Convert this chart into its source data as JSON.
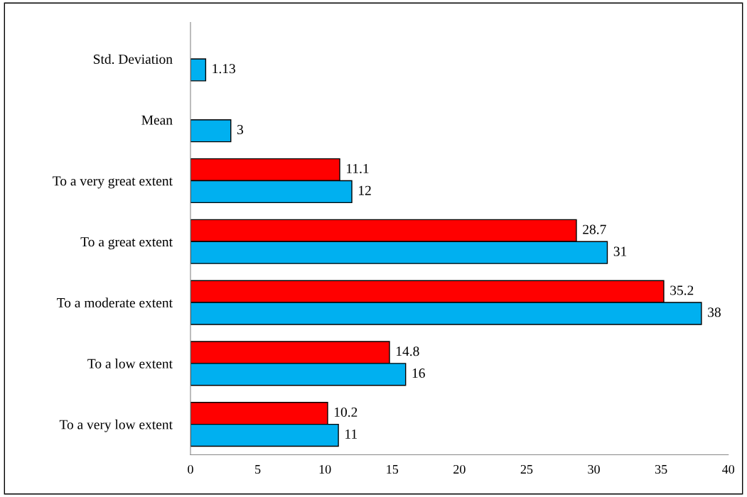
{
  "chart_data": {
    "type": "bar",
    "orientation": "horizontal",
    "categories": [
      "Std. Deviation",
      "Mean",
      "To a very great extent",
      "To a great extent",
      "To a moderate extent",
      "To a low extent",
      "To a very low extent"
    ],
    "series": [
      {
        "color": "#ff0000",
        "values": [
          null,
          null,
          11.1,
          28.7,
          35.2,
          14.8,
          10.2
        ]
      },
      {
        "color": "#00b0f0",
        "values": [
          1.13,
          3,
          12,
          31,
          38,
          16,
          11
        ]
      }
    ],
    "xlim": [
      0,
      40
    ],
    "xticks": [
      0,
      5,
      10,
      15,
      20,
      25,
      30,
      35,
      40
    ],
    "grid": false,
    "data_labels": true
  }
}
